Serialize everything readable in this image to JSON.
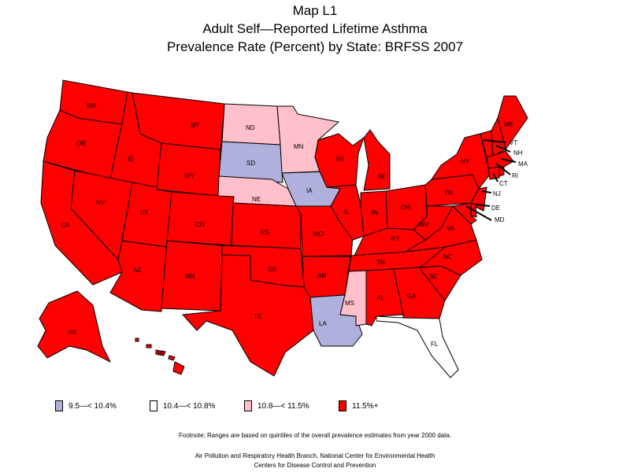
{
  "title": {
    "line1": "Map L1",
    "line2": "Adult Self—Reported Lifetime Asthma",
    "line3": "Prevalence Rate (Percent) by State: BRFSS 2007"
  },
  "colors": {
    "cat1": "#b0b0dc",
    "cat2": "#ffffff",
    "cat3": "#ffc0cb",
    "cat4": "#ff0000"
  },
  "legend": [
    {
      "label": "9.5—< 10.4%",
      "category": "cat1"
    },
    {
      "label": "10.4—< 10.8%",
      "category": "cat2"
    },
    {
      "label": "10.8—< 11.5%",
      "category": "cat3"
    },
    {
      "label": "11.5%+",
      "category": "cat4"
    }
  ],
  "states": {
    "WA": "cat4",
    "OR": "cat4",
    "CA": "cat4",
    "ID": "cat4",
    "NV": "cat4",
    "MT": "cat4",
    "WY": "cat4",
    "UT": "cat4",
    "AZ": "cat4",
    "CO": "cat4",
    "NM": "cat4",
    "ND": "cat3",
    "SD": "cat1",
    "NE": "cat3",
    "KS": "cat4",
    "OK": "cat4",
    "TX": "cat4",
    "MN": "cat3",
    "IA": "cat1",
    "MO": "cat4",
    "AR": "cat4",
    "LA": "cat1",
    "WI": "cat4",
    "IL": "cat4",
    "MI": "cat4",
    "IN": "cat4",
    "OH": "cat4",
    "KY": "cat4",
    "TN": "cat4",
    "MS": "cat3",
    "AL": "cat4",
    "GA": "cat4",
    "FL": "cat2",
    "SC": "cat4",
    "NC": "cat4",
    "VA": "cat4",
    "WV": "cat4",
    "PA": "cat4",
    "NY": "cat4",
    "ME": "cat4",
    "VT": "cat4",
    "NH": "cat4",
    "MA": "cat4",
    "RI": "cat4",
    "CT": "cat4",
    "NJ": "cat4",
    "DE": "cat4",
    "MD": "cat4",
    "AK": "cat4",
    "HI": "cat4"
  },
  "footnote": "Footnote: Ranges are based on quintiles of the overall prevalence estimates from year 2000 data.",
  "credit": {
    "line1": "Air Pollution and Respiratory Health Branch, National Center for Environmental Health",
    "line2": "Centers for Disease Control and Prevention"
  }
}
